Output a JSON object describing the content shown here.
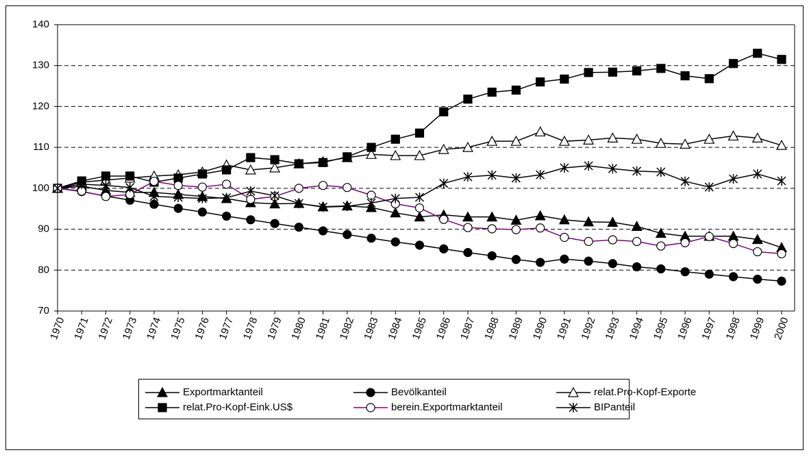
{
  "chart_data": {
    "type": "line",
    "categories": [
      "1970",
      "1971",
      "1972",
      "1973",
      "1974",
      "1975",
      "1976",
      "1977",
      "1978",
      "1979",
      "1980",
      "1981",
      "1982",
      "1983",
      "1984",
      "1985",
      "1986",
      "1987",
      "1988",
      "1989",
      "1990",
      "1991",
      "1992",
      "1993",
      "1994",
      "1995",
      "1996",
      "1997",
      "1998",
      "1999",
      "2000"
    ],
    "ylim": [
      70,
      140
    ],
    "yticks": [
      70,
      80,
      90,
      100,
      110,
      120,
      130,
      140
    ],
    "grid": true,
    "legend": "bottom",
    "series": [
      {
        "name": "Exportmarktanteil",
        "color": "#000000",
        "marker": "triangle",
        "marker_fill": "#000000",
        "values": [
          100,
          100.5,
          99.5,
          99,
          99,
          98.5,
          98,
          97.5,
          96.5,
          96.2,
          96.3,
          95.5,
          95.7,
          95.3,
          94,
          93,
          93.5,
          93,
          93,
          92.2,
          93.3,
          92.3,
          91.8,
          91.7,
          90.7,
          89,
          88.3,
          88.3,
          88.3,
          87.5,
          85.5
        ]
      },
      {
        "name": "Bevölkanteil",
        "color": "#000000",
        "marker": "circle",
        "marker_fill": "#000000",
        "values": [
          100,
          99.2,
          98.1,
          97.1,
          96.1,
          95.1,
          94.2,
          93.2,
          92.3,
          91.4,
          90.5,
          89.6,
          88.7,
          87.8,
          86.9,
          86.1,
          85.2,
          84.3,
          83.5,
          82.6,
          81.9,
          82.7,
          82.2,
          81.6,
          80.8,
          80.3,
          79.6,
          79,
          78.4,
          77.8,
          77.3
        ]
      },
      {
        "name": "relat.Pro-Kopf-Exporte",
        "color": "#000000",
        "marker": "triangle",
        "marker_fill": "#ffffff",
        "values": [
          100,
          101.5,
          102,
          102.5,
          103,
          103.3,
          104,
          105.7,
          104.5,
          105,
          106,
          106.5,
          107.5,
          108.3,
          108,
          108,
          109.5,
          110,
          111.5,
          111.5,
          113.8,
          111.5,
          111.8,
          112.3,
          112,
          111,
          110.8,
          112,
          112.8,
          112.3,
          110.5
        ]
      },
      {
        "name": "relat.Pro-Kopf-Eink.US$",
        "color": "#000000",
        "marker": "square",
        "marker_fill": "#000000",
        "values": [
          100,
          101.8,
          103,
          103,
          101.5,
          102.5,
          103.5,
          104.5,
          107.5,
          107,
          106,
          106.3,
          107.7,
          110,
          112,
          113.5,
          118.7,
          121.8,
          123.5,
          124,
          126,
          126.7,
          128.3,
          128.4,
          128.7,
          129.3,
          127.5,
          126.8,
          130.5,
          133,
          131.5
        ]
      },
      {
        "name": "berein.Exportmarktanteil",
        "color": "#800080",
        "marker": "circle",
        "marker_fill": "#ffffff",
        "values": [
          100,
          99.3,
          98,
          98.5,
          101.7,
          100.7,
          100.3,
          101,
          97.3,
          98,
          100,
          100.7,
          100.2,
          98.3,
          96.2,
          95.2,
          92.4,
          90.4,
          90.1,
          89.9,
          90.3,
          88,
          87,
          87.4,
          87,
          85.9,
          86.7,
          88.2,
          86.5,
          84.5,
          84
        ]
      },
      {
        "name": "BIPanteil",
        "color": "#000000",
        "marker": "star",
        "marker_fill": "#000000",
        "values": [
          100,
          101,
          100.7,
          100.2,
          98,
          97.8,
          97.5,
          97.7,
          99.3,
          98.2,
          96.3,
          95.4,
          95.6,
          96.4,
          97.5,
          97.8,
          101.2,
          102.8,
          103.2,
          102.5,
          103.3,
          105,
          105.5,
          104.8,
          104.2,
          104,
          101.7,
          100.3,
          102.3,
          103.5,
          101.8
        ]
      }
    ]
  }
}
